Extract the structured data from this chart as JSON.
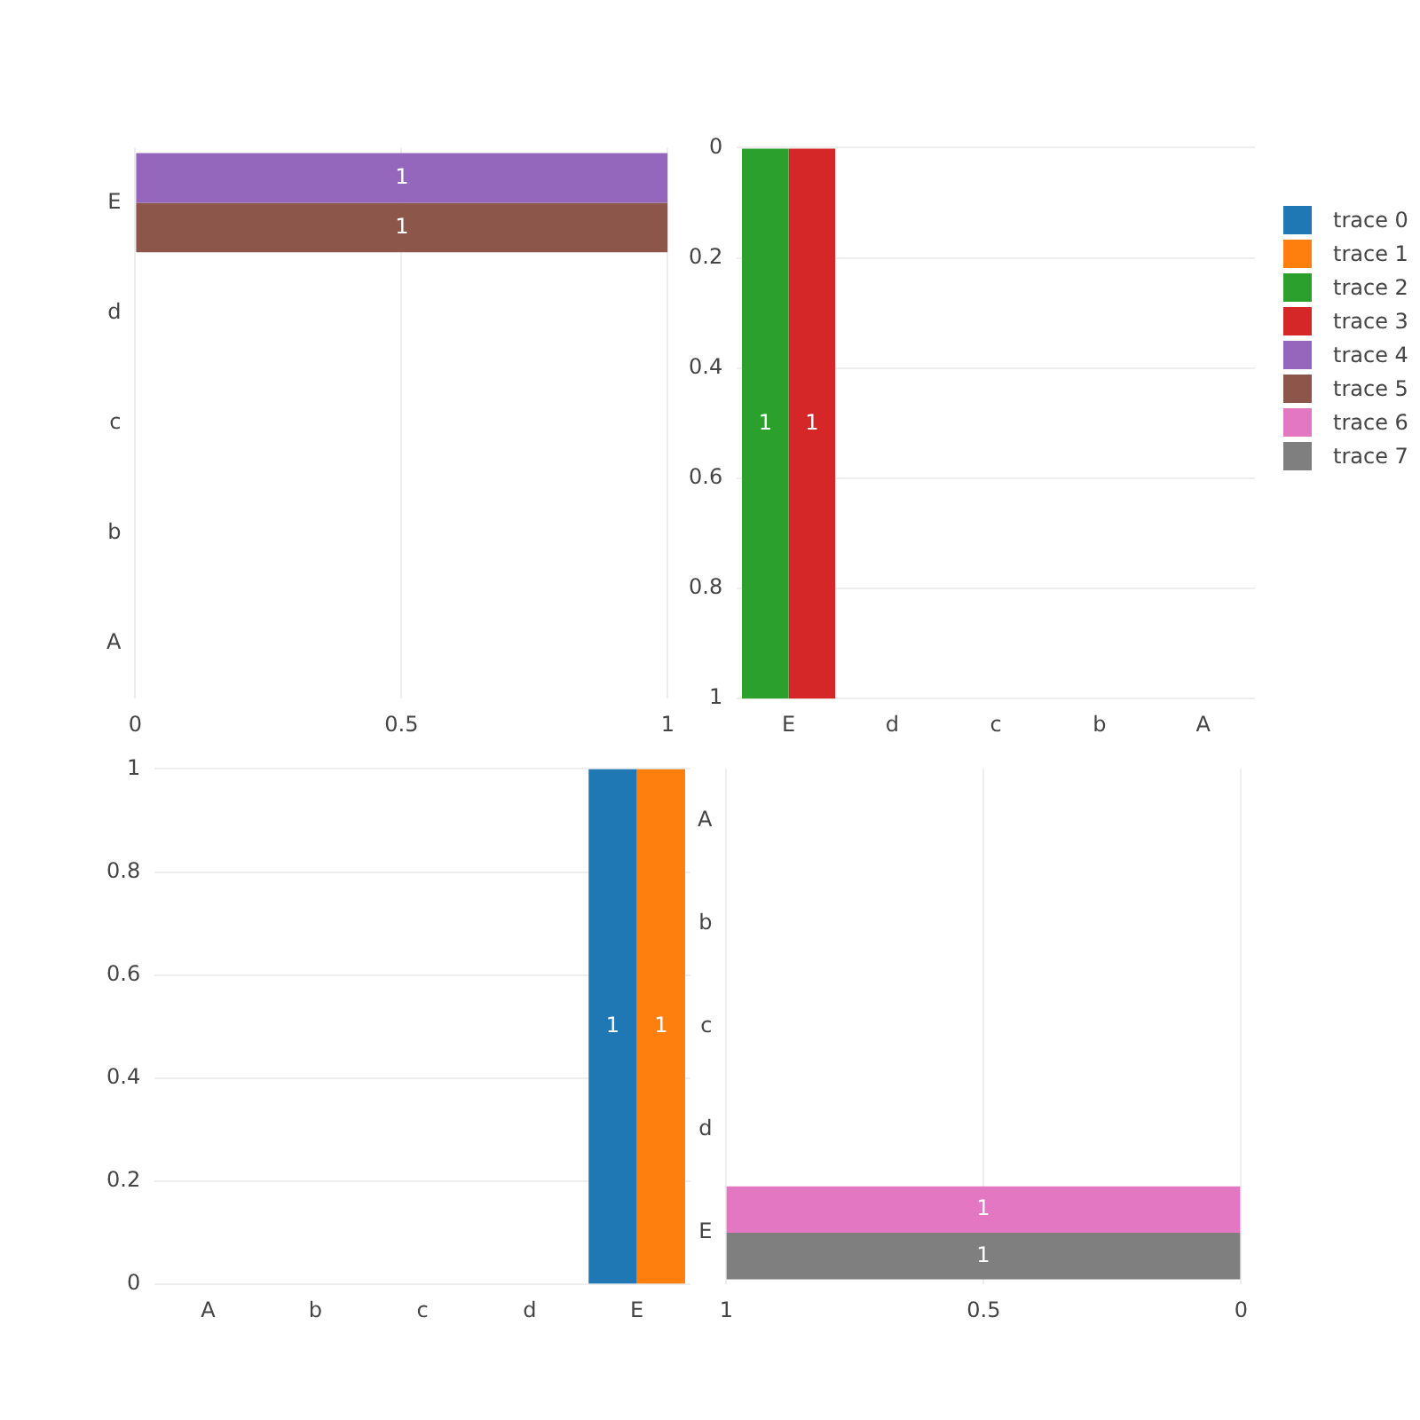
{
  "chart_data": [
    {
      "type": "bar",
      "orientation": "horizontal",
      "categories": [
        "E",
        "d",
        "c",
        "b",
        "A"
      ],
      "series": [
        {
          "name": "trace 4",
          "color": "#9467bd",
          "values": [
            1,
            null,
            null,
            null,
            0
          ],
          "value_labels": [
            "1",
            null,
            null,
            null,
            null
          ]
        },
        {
          "name": "trace 5",
          "color": "#8c564b",
          "values": [
            1,
            null,
            null,
            null,
            0
          ],
          "value_labels": [
            "1",
            null,
            null,
            null,
            null
          ]
        }
      ],
      "xlim": [
        0,
        1
      ],
      "xticks": [
        0,
        0.5,
        1
      ],
      "grid": "x",
      "legend": "right"
    },
    {
      "type": "bar",
      "categories": [
        "E",
        "d",
        "c",
        "b",
        "A"
      ],
      "series": [
        {
          "name": "trace 2",
          "color": "#2ca02c",
          "values": [
            1,
            null,
            null,
            null,
            0
          ],
          "value_labels": [
            "1",
            null,
            null,
            null,
            null
          ]
        },
        {
          "name": "trace 3",
          "color": "#d62728",
          "values": [
            1,
            null,
            null,
            null,
            0
          ],
          "value_labels": [
            "1",
            null,
            null,
            null,
            null
          ]
        }
      ],
      "ylim": [
        1,
        0
      ],
      "yticks": [
        0,
        0.2,
        0.4,
        0.6,
        0.8,
        1
      ],
      "grid": "y",
      "legend": "right"
    },
    {
      "type": "bar",
      "categories": [
        "A",
        "b",
        "c",
        "d",
        "E"
      ],
      "series": [
        {
          "name": "trace 0",
          "color": "#1f77b4",
          "values": [
            0,
            null,
            null,
            null,
            1
          ],
          "value_labels": [
            null,
            null,
            null,
            null,
            "1"
          ]
        },
        {
          "name": "trace 1",
          "color": "#ff7f0e",
          "values": [
            0,
            null,
            null,
            null,
            1
          ],
          "value_labels": [
            null,
            null,
            null,
            null,
            "1"
          ]
        }
      ],
      "ylim": [
        0,
        1
      ],
      "yticks": [
        0,
        0.2,
        0.4,
        0.6,
        0.8,
        1
      ],
      "grid": "y",
      "legend": "right"
    },
    {
      "type": "bar",
      "orientation": "horizontal",
      "categories": [
        "A",
        "b",
        "c",
        "d",
        "E"
      ],
      "series": [
        {
          "name": "trace 6",
          "color": "#e377c2",
          "values": [
            0,
            null,
            null,
            null,
            1
          ],
          "value_labels": [
            null,
            null,
            null,
            null,
            "1"
          ]
        },
        {
          "name": "trace 7",
          "color": "#7f7f7f",
          "values": [
            0,
            null,
            null,
            null,
            1
          ],
          "value_labels": [
            null,
            null,
            null,
            null,
            "1"
          ]
        }
      ],
      "xlim": [
        1,
        0
      ],
      "xticks": [
        1,
        0.5,
        0
      ],
      "grid": "x",
      "legend": "right"
    }
  ]
}
